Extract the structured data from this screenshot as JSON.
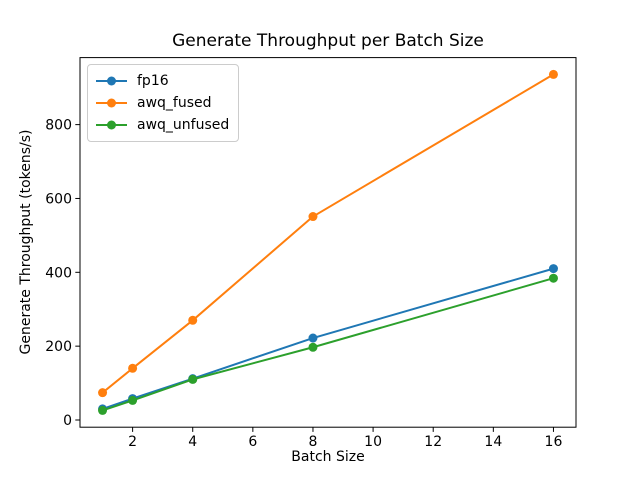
{
  "chart_data": {
    "type": "line",
    "title": "Generate Throughput per Batch Size",
    "xlabel": "Batch Size",
    "ylabel": "Generate Throughput (tokens/s)",
    "x": [
      1,
      2,
      4,
      8,
      16
    ],
    "series": [
      {
        "name": "fp16",
        "color": "#1f77b4",
        "values": [
          30,
          58,
          112,
          222,
          410
        ]
      },
      {
        "name": "awq_fused",
        "color": "#ff7f0e",
        "values": [
          74,
          140,
          270,
          551,
          936
        ]
      },
      {
        "name": "awq_unfused",
        "color": "#2ca02c",
        "values": [
          26,
          53,
          110,
          197,
          384
        ]
      }
    ],
    "xlim": [
      0.25,
      16.75
    ],
    "ylim": [
      -19.5,
      981.5
    ],
    "xticks": [
      "2",
      "4",
      "6",
      "8",
      "10",
      "12",
      "14",
      "16"
    ],
    "yticks": [
      "0",
      "200",
      "400",
      "600",
      "800"
    ],
    "grid": false,
    "legend_position": "upper left",
    "marker": "o",
    "line_width": 2,
    "marker_radius": 4.5,
    "spine_color": "#000000",
    "background": "#ffffff"
  }
}
